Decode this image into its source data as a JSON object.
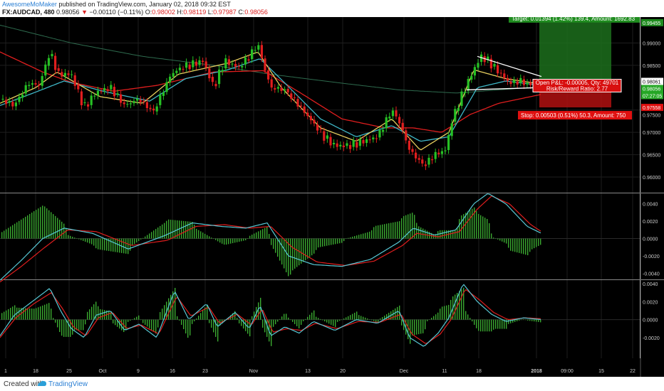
{
  "header": {
    "author": "AwesomeMoMaker",
    "published_text": " published on TradingView.com, January 02, 2018 09:32 EST",
    "symbol": "FX:AUDCAD, 480",
    "last": "0.98056",
    "change": "−0.00110 (−0.11%)",
    "o_label": "O:",
    "o_value": "0.98002",
    "h_label": "H:",
    "h_value": "0.98119",
    "l_label": "L:",
    "l_value": "0.97987",
    "c_label": "C:",
    "c_value": "0.98056"
  },
  "footer": {
    "created_with": "Created with",
    "brand": "TradingView"
  },
  "colors": {
    "background": "#000000",
    "grid": "#1e1e1e",
    "candle_up": "#26c024",
    "candle_down": "#e01e1e",
    "ma_long": "#2e6b4e",
    "ma_red": "#e01e1e",
    "ma_cyan": "#3fb8c8",
    "ma_yellow": "#e8d060",
    "macd_line": "#57c7d4",
    "signal_line": "#e01e1e",
    "hist": "#3aa830",
    "target_bg": "#1f8c1f",
    "stop_bg": "#e01010"
  },
  "chart_data": [
    {
      "type": "candlestick",
      "symbol": "FX:AUDCAD",
      "interval": "480",
      "x_tick_labels": [
        "1",
        "18",
        "25",
        "Oct",
        "9",
        "16",
        "23",
        "Nov",
        "13",
        "20",
        "Dec",
        "11",
        "18",
        "2018",
        "09:00",
        "15",
        "22"
      ],
      "y_tick_labels": [
        "0.99455",
        "0.99000",
        "0.98500",
        "0.98061",
        "0.98056",
        "07:27:05",
        "0.97558",
        "0.97500",
        "0.97000",
        "0.96500",
        "0.96000"
      ],
      "ylim": [
        0.9565,
        0.9958
      ],
      "close_path": [
        [
          0,
          0.9775
        ],
        [
          20,
          0.976
        ],
        [
          40,
          0.981
        ],
        [
          55,
          0.9805
        ],
        [
          70,
          0.988
        ],
        [
          82,
          0.983
        ],
        [
          100,
          0.983
        ],
        [
          118,
          0.9755
        ],
        [
          135,
          0.979
        ],
        [
          155,
          0.98
        ],
        [
          175,
          0.976
        ],
        [
          195,
          0.9775
        ],
        [
          215,
          0.9745
        ],
        [
          240,
          0.983
        ],
        [
          255,
          0.9845
        ],
        [
          275,
          0.9855
        ],
        [
          285,
          0.986
        ],
        [
          300,
          0.98
        ],
        [
          315,
          0.986
        ],
        [
          335,
          0.9845
        ],
        [
          350,
          0.987
        ],
        [
          362,
          0.9898
        ],
        [
          370,
          0.985
        ],
        [
          380,
          0.98
        ],
        [
          400,
          0.9795
        ],
        [
          420,
          0.976
        ],
        [
          440,
          0.972
        ],
        [
          455,
          0.969
        ],
        [
          470,
          0.967
        ],
        [
          490,
          0.967
        ],
        [
          510,
          0.968
        ],
        [
          530,
          0.969
        ],
        [
          550,
          0.975
        ],
        [
          560,
          0.9725
        ],
        [
          575,
          0.966
        ],
        [
          595,
          0.9625
        ],
        [
          610,
          0.965
        ],
        [
          625,
          0.966
        ],
        [
          635,
          0.973
        ],
        [
          650,
          0.979
        ],
        [
          665,
          0.984
        ],
        [
          675,
          0.987
        ],
        [
          685,
          0.986
        ],
        [
          700,
          0.9835
        ],
        [
          715,
          0.981
        ],
        [
          730,
          0.9815
        ],
        [
          745,
          0.9805
        ],
        [
          755,
          0.9806
        ]
      ],
      "moving_averages": [
        {
          "color": "ma_long",
          "values": [
            [
              0,
              0.994
            ],
            [
              100,
              0.99
            ],
            [
              200,
              0.987
            ],
            [
              300,
              0.985
            ],
            [
              380,
              0.983
            ],
            [
              480,
              0.981
            ],
            [
              560,
              0.9795
            ],
            [
              640,
              0.9788
            ],
            [
              700,
              0.9795
            ],
            [
              760,
              0.9802
            ]
          ]
        },
        {
          "color": "ma_red",
          "values": [
            [
              0,
              0.988
            ],
            [
              60,
              0.9835
            ],
            [
              100,
              0.9812
            ],
            [
              160,
              0.9792
            ],
            [
              220,
              0.9805
            ],
            [
              300,
              0.9835
            ],
            [
              370,
              0.9838
            ],
            [
              420,
              0.979
            ],
            [
              480,
              0.973
            ],
            [
              540,
              0.971
            ],
            [
              580,
              0.971
            ],
            [
              620,
              0.97
            ],
            [
              660,
              0.974
            ],
            [
              700,
              0.9765
            ],
            [
              760,
              0.9785
            ]
          ]
        },
        {
          "color": "ma_cyan",
          "values": [
            [
              0,
              0.976
            ],
            [
              50,
              0.979
            ],
            [
              90,
              0.9815
            ],
            [
              150,
              0.979
            ],
            [
              210,
              0.977
            ],
            [
              260,
              0.982
            ],
            [
              320,
              0.984
            ],
            [
              365,
              0.9865
            ],
            [
              400,
              0.981
            ],
            [
              450,
              0.973
            ],
            [
              500,
              0.969
            ],
            [
              550,
              0.9715
            ],
            [
              590,
              0.968
            ],
            [
              630,
              0.969
            ],
            [
              670,
              0.98
            ],
            [
              710,
              0.9815
            ],
            [
              760,
              0.9805
            ]
          ]
        },
        {
          "color": "ma_yellow",
          "values": [
            [
              0,
              0.9765
            ],
            [
              50,
              0.98
            ],
            [
              80,
              0.9835
            ],
            [
              140,
              0.978
            ],
            [
              200,
              0.9765
            ],
            [
              250,
              0.983
            ],
            [
              320,
              0.9855
            ],
            [
              362,
              0.988
            ],
            [
              395,
              0.98
            ],
            [
              450,
              0.971
            ],
            [
              500,
              0.968
            ],
            [
              550,
              0.973
            ],
            [
              590,
              0.966
            ],
            [
              630,
              0.97
            ],
            [
              665,
              0.984
            ],
            [
              710,
              0.982
            ],
            [
              760,
              0.9808
            ]
          ]
        }
      ],
      "trendlines": [
        {
          "from": [
            670,
            0.987
          ],
          "to": [
            760,
            0.9825
          ]
        },
        {
          "from": [
            655,
            0.9795
          ],
          "to": [
            755,
            0.98
          ]
        }
      ],
      "position": {
        "entry": 0.98061,
        "target": 0.99455,
        "stop": 0.97558,
        "target_label": "Target: 0.01394 (1.42%) 139.4, Amount: 1692.83",
        "stop_label": "Stop: 0.00503 (0.51%) 50.3, Amount: 750",
        "pnl_label": "Open P&L: -0.00005, Qty: 49701",
        "rr_label": "Risk/Reward Ratio: 2.77"
      }
    },
    {
      "type": "macd",
      "y_tick_labels": [
        "0.0040",
        "0.0020",
        "0.0000",
        "-0.0020",
        "-0.0040"
      ],
      "ylim": [
        -0.0047,
        0.0052
      ],
      "macd": [
        [
          0,
          -0.0048
        ],
        [
          30,
          -0.0025
        ],
        [
          60,
          0.0
        ],
        [
          90,
          0.0012
        ],
        [
          130,
          0.0006
        ],
        [
          180,
          -0.0012
        ],
        [
          230,
          0.0003
        ],
        [
          270,
          0.0018
        ],
        [
          310,
          0.0014
        ],
        [
          345,
          0.0012
        ],
        [
          375,
          0.0018
        ],
        [
          405,
          -0.002
        ],
        [
          440,
          -0.003
        ],
        [
          480,
          -0.0032
        ],
        [
          520,
          -0.0024
        ],
        [
          560,
          -0.0004
        ],
        [
          580,
          0.0012
        ],
        [
          610,
          0.0004
        ],
        [
          640,
          0.001
        ],
        [
          665,
          0.004
        ],
        [
          685,
          0.0052
        ],
        [
          710,
          0.004
        ],
        [
          740,
          0.0014
        ],
        [
          760,
          0.0006
        ]
      ],
      "signal": [
        [
          0,
          -0.005
        ],
        [
          30,
          -0.0032
        ],
        [
          60,
          -0.0012
        ],
        [
          95,
          0.001
        ],
        [
          135,
          0.0008
        ],
        [
          185,
          -0.0008
        ],
        [
          235,
          -0.0002
        ],
        [
          275,
          0.0014
        ],
        [
          315,
          0.0016
        ],
        [
          350,
          0.0012
        ],
        [
          380,
          0.0014
        ],
        [
          410,
          -0.001
        ],
        [
          445,
          -0.0027
        ],
        [
          485,
          -0.0031
        ],
        [
          525,
          -0.0026
        ],
        [
          565,
          -0.0008
        ],
        [
          585,
          0.0006
        ],
        [
          615,
          0.0002
        ],
        [
          645,
          0.0008
        ],
        [
          670,
          0.0034
        ],
        [
          690,
          0.0049
        ],
        [
          715,
          0.004
        ],
        [
          745,
          0.0016
        ],
        [
          760,
          0.0008
        ]
      ]
    },
    {
      "type": "macd",
      "y_tick_labels": [
        "0.0040",
        "0.0020",
        "0.0000",
        "-0.0020"
      ],
      "ylim": [
        -0.0043,
        0.0044
      ],
      "macd": [
        [
          0,
          -0.0018
        ],
        [
          20,
          0.0005
        ],
        [
          45,
          0.002
        ],
        [
          70,
          0.0035
        ],
        [
          85,
          0.001
        ],
        [
          100,
          -0.001
        ],
        [
          118,
          -0.002
        ],
        [
          135,
          0.0005
        ],
        [
          155,
          0.001
        ],
        [
          175,
          -0.0012
        ],
        [
          195,
          -0.0005
        ],
        [
          220,
          -0.002
        ],
        [
          245,
          0.0032
        ],
        [
          265,
          0.0
        ],
        [
          290,
          0.0018
        ],
        [
          305,
          -0.0008
        ],
        [
          330,
          0.0008
        ],
        [
          350,
          -0.001
        ],
        [
          365,
          0.0016
        ],
        [
          380,
          -0.0018
        ],
        [
          400,
          -0.0008
        ],
        [
          420,
          -0.0015
        ],
        [
          440,
          -0.0002
        ],
        [
          470,
          -0.0012
        ],
        [
          500,
          0.0
        ],
        [
          530,
          -0.0004
        ],
        [
          560,
          0.001
        ],
        [
          575,
          -0.002
        ],
        [
          595,
          -0.003
        ],
        [
          615,
          -0.0015
        ],
        [
          630,
          0.0002
        ],
        [
          650,
          0.004
        ],
        [
          670,
          0.002
        ],
        [
          690,
          0.0006
        ],
        [
          710,
          -0.0002
        ],
        [
          735,
          0.0002
        ],
        [
          760,
          0.0
        ]
      ],
      "signal": [
        [
          0,
          -0.002
        ],
        [
          22,
          0.0002
        ],
        [
          48,
          0.0018
        ],
        [
          72,
          0.003
        ],
        [
          88,
          0.0012
        ],
        [
          103,
          -0.0008
        ],
        [
          121,
          -0.0018
        ],
        [
          138,
          0.0002
        ],
        [
          158,
          0.0008
        ],
        [
          178,
          -0.001
        ],
        [
          198,
          -0.0006
        ],
        [
          223,
          -0.0016
        ],
        [
          248,
          0.0026
        ],
        [
          268,
          0.0004
        ],
        [
          293,
          0.0014
        ],
        [
          308,
          -0.0004
        ],
        [
          333,
          0.0006
        ],
        [
          353,
          -0.0006
        ],
        [
          368,
          0.0012
        ],
        [
          383,
          -0.0014
        ],
        [
          403,
          -0.001
        ],
        [
          423,
          -0.0012
        ],
        [
          443,
          -0.0004
        ],
        [
          473,
          -0.001
        ],
        [
          503,
          -0.0002
        ],
        [
          533,
          -0.0003
        ],
        [
          563,
          0.0006
        ],
        [
          578,
          -0.0016
        ],
        [
          598,
          -0.0027
        ],
        [
          618,
          -0.0016
        ],
        [
          633,
          0.0
        ],
        [
          653,
          0.0034
        ],
        [
          673,
          0.0022
        ],
        [
          693,
          0.0008
        ],
        [
          713,
          0.0
        ],
        [
          738,
          0.0002
        ],
        [
          760,
          0.0001
        ]
      ]
    }
  ]
}
